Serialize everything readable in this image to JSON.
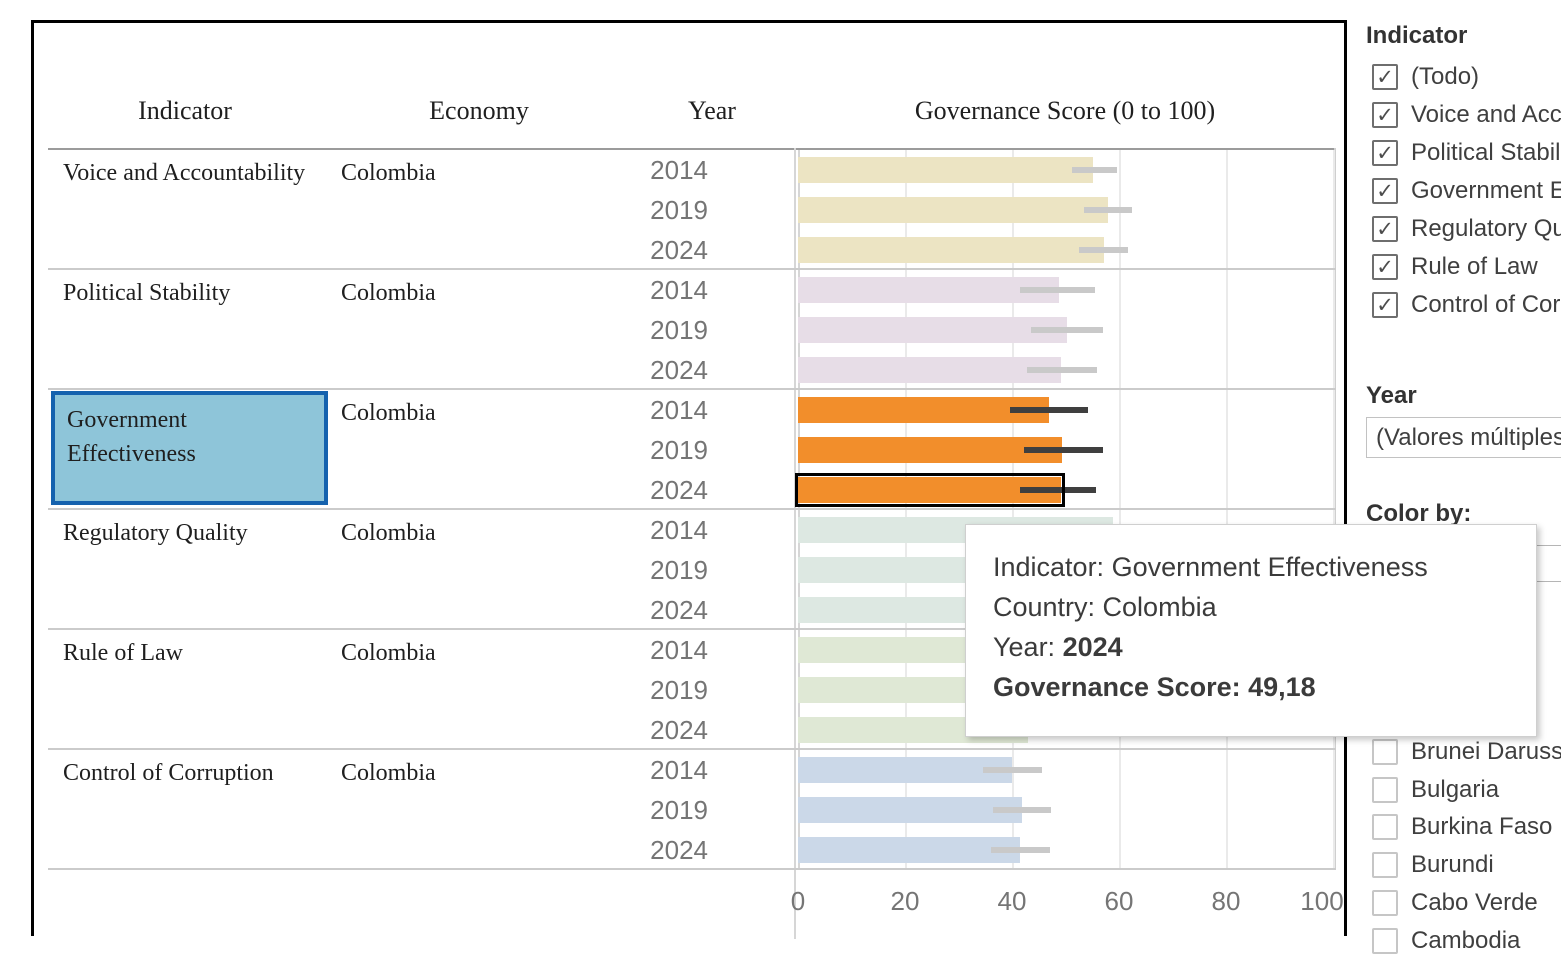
{
  "table": {
    "headers": [
      "Indicator",
      "Economy",
      "Year"
    ],
    "chart_header": "Governance Score (0 to 100)"
  },
  "chart_data": {
    "type": "bar",
    "orientation": "horizontal",
    "title": "Governance Score (0 to 100)",
    "xlabel": "Governance Score (0 to 100)",
    "xlim": [
      0,
      100
    ],
    "x_ticks": [
      0,
      20,
      40,
      60,
      80,
      100
    ],
    "grid": true,
    "economy": "Colombia",
    "years": [
      "2014",
      "2019",
      "2024"
    ],
    "groups": [
      {
        "indicator": "Voice and Accountability",
        "economy": "Colombia",
        "color": "#ece4c3",
        "whisker_color": "#c9c9c9",
        "highlighted": false,
        "bars": [
          {
            "year": "2014",
            "value": 55.1,
            "ci": [
              51.2,
              59.6
            ]
          },
          {
            "year": "2019",
            "value": 57.9,
            "ci": [
              53.5,
              62.4
            ]
          },
          {
            "year": "2024",
            "value": 57.2,
            "ci": [
              52.5,
              61.7
            ]
          }
        ]
      },
      {
        "indicator": "Political Stability",
        "economy": "Colombia",
        "color": "#e7dde7",
        "whisker_color": "#c9c9c9",
        "highlighted": false,
        "bars": [
          {
            "year": "2014",
            "value": 48.8,
            "ci": [
              41.5,
              55.5
            ]
          },
          {
            "year": "2019",
            "value": 50.3,
            "ci": [
              43.6,
              57.0
            ]
          },
          {
            "year": "2024",
            "value": 49.2,
            "ci": [
              42.8,
              55.9
            ]
          }
        ]
      },
      {
        "indicator": "Government Effectiveness",
        "economy": "Colombia",
        "color": "#f28e2b",
        "whisker_color": "#3f3f3f",
        "highlighted": true,
        "bars": [
          {
            "year": "2014",
            "value": 46.9,
            "ci": [
              39.6,
              54.2
            ]
          },
          {
            "year": "2019",
            "value": 49.4,
            "ci": [
              42.2,
              57.0
            ]
          },
          {
            "year": "2024",
            "value": 49.18,
            "ci": [
              41.5,
              55.7
            ],
            "selected": true
          }
        ]
      },
      {
        "indicator": "Regulatory Quality",
        "economy": "Colombia",
        "color": "#dde8e2",
        "whisker_color": "#c9c9c9",
        "highlighted": false,
        "bars": [
          {
            "year": "2014",
            "value": 58.9,
            "ci": [
              52.9,
              64.9
            ]
          },
          {
            "year": "2019",
            "value": 57.5,
            "ci": [
              51.5,
              63.5
            ]
          },
          {
            "year": "2024",
            "value": 56.5,
            "ci": [
              50.5,
              62.5
            ]
          }
        ]
      },
      {
        "indicator": "Rule of Law",
        "economy": "Colombia",
        "color": "#dfe8d5",
        "whisker_color": "#c9c9c9",
        "highlighted": false,
        "bars": [
          {
            "year": "2014",
            "value": 42.0,
            "ci": [
              36.0,
              48.0
            ]
          },
          {
            "year": "2019",
            "value": 41.0,
            "ci": [
              35.0,
              47.0
            ]
          },
          {
            "year": "2024",
            "value": 43.0,
            "ci": [
              37.0,
              49.0
            ]
          }
        ]
      },
      {
        "indicator": "Control of Corruption",
        "economy": "Colombia",
        "color": "#cbd8e8",
        "whisker_color": "#c9c9c9",
        "highlighted": false,
        "bars": [
          {
            "year": "2014",
            "value": 40.0,
            "ci": [
              34.6,
              45.6
            ]
          },
          {
            "year": "2019",
            "value": 41.9,
            "ci": [
              36.4,
              47.3
            ]
          },
          {
            "year": "2024",
            "value": 41.5,
            "ci": [
              36.1,
              47.1
            ]
          }
        ]
      }
    ],
    "selection": {
      "indicator": "Government Effectiveness",
      "year": "2024",
      "value": "49,18"
    },
    "highlight_colors": {
      "cell_fill": "#8ec5d9",
      "cell_border": "#1562ae"
    }
  },
  "tooltip": {
    "rows": [
      {
        "label": "Indicator:",
        "value": "Government Effectiveness",
        "label_bold": false,
        "value_bold": false
      },
      {
        "label": "Country:",
        "value": "Colombia",
        "label_bold": false,
        "value_bold": false
      },
      {
        "label": "Year:",
        "value": "2024",
        "label_bold": false,
        "value_bold": true
      },
      {
        "label": "Governance Score:",
        "value": "49,18",
        "label_bold": true,
        "value_bold": true
      }
    ]
  },
  "filters": {
    "indicator": {
      "title": "Indicator",
      "items": [
        {
          "label": "(Todo)",
          "checked": true
        },
        {
          "label": "Voice and Accountability",
          "checked": true
        },
        {
          "label": "Political Stability",
          "checked": true
        },
        {
          "label": "Government Effectiveness",
          "checked": true
        },
        {
          "label": "Regulatory Quality",
          "checked": true
        },
        {
          "label": "Rule of Law",
          "checked": true
        },
        {
          "label": "Control of Corruption",
          "checked": true
        }
      ]
    },
    "year": {
      "title": "Year",
      "value": "(Valores múltiples)"
    },
    "color_by": {
      "title": "Color by:"
    },
    "countries": {
      "items": [
        {
          "label": "Brunei Darussalam",
          "checked": false
        },
        {
          "label": "Bulgaria",
          "checked": false
        },
        {
          "label": "Burkina Faso",
          "checked": false
        },
        {
          "label": "Burundi",
          "checked": false
        },
        {
          "label": "Cabo Verde",
          "checked": false
        },
        {
          "label": "Cambodia",
          "checked": false
        }
      ]
    }
  }
}
